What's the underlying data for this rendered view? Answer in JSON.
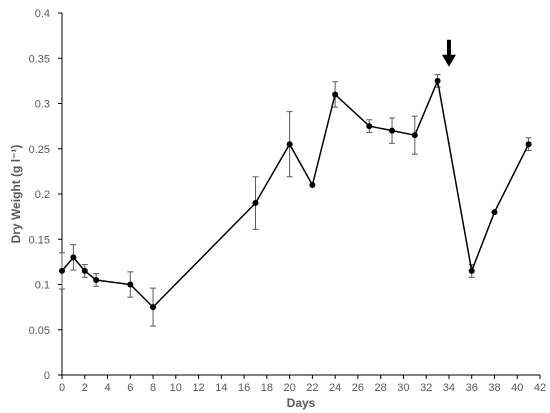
{
  "chart_data": {
    "type": "line",
    "xlabel": "Days",
    "ylabel": "Dry Weight (g l⁻¹)",
    "xlim": [
      0,
      42
    ],
    "ylim": [
      0,
      0.4
    ],
    "xticks": [
      0,
      2,
      4,
      6,
      8,
      10,
      12,
      14,
      16,
      18,
      20,
      22,
      24,
      26,
      28,
      30,
      32,
      34,
      36,
      38,
      40,
      42
    ],
    "xtick_labels": [
      "0",
      "2",
      "4",
      "6",
      "8",
      "10",
      "12",
      "14",
      "16",
      "18",
      "20",
      "22",
      "24",
      "26",
      "28",
      "30",
      "32",
      "34",
      "36",
      "38",
      "40",
      "42"
    ],
    "yticks": [
      0,
      0.05,
      0.1,
      0.15,
      0.2,
      0.25,
      0.3,
      0.35,
      0.4
    ],
    "ytick_labels": [
      "0",
      "0.05",
      "0.1",
      "0.15",
      "0.2",
      "0.25",
      "0.3",
      "0.35",
      "0.4"
    ],
    "grid": false,
    "legend": false,
    "series_color": "#000000",
    "error_bar_color": "#595959",
    "series": [
      {
        "x": [
          0,
          1,
          2,
          3,
          6,
          8,
          17,
          20,
          22,
          24,
          27,
          29,
          31,
          33,
          36,
          38,
          41
        ],
        "y": [
          0.115,
          0.13,
          0.115,
          0.105,
          0.1,
          0.075,
          0.19,
          0.255,
          0.21,
          0.31,
          0.275,
          0.27,
          0.265,
          0.325,
          0.115,
          0.18,
          0.255
        ],
        "error": [
          0.02,
          0.014,
          0.007,
          0.007,
          0.014,
          0.021,
          0.029,
          0.036,
          0,
          0.014,
          0.007,
          0.014,
          0.021,
          0.007,
          0.007,
          0,
          0.007
        ]
      }
    ],
    "annotations": [
      {
        "type": "arrow-down",
        "x": 34,
        "y": 0.345
      }
    ]
  }
}
